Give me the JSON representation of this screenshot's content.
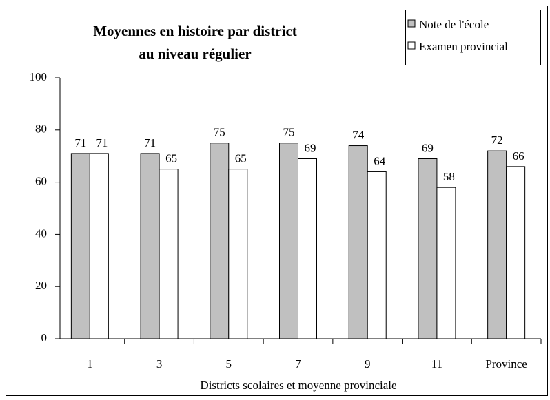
{
  "chart_data": {
    "type": "bar",
    "title": [
      "Moyennes en histoire par district",
      "au niveau régulier"
    ],
    "x_label": "Districts scolaires et moyenne provinciale",
    "categories": [
      "1",
      "3",
      "5",
      "7",
      "9",
      "11",
      "Province"
    ],
    "series": [
      {
        "name": "Note de l'école",
        "color": "#c0c0c0",
        "values": [
          71,
          71,
          75,
          75,
          74,
          69,
          72
        ]
      },
      {
        "name": "Examen provincial",
        "color": "#ffffff",
        "values": [
          71,
          65,
          65,
          69,
          64,
          58,
          66
        ]
      }
    ],
    "ylim": [
      0,
      100
    ],
    "yticks": [
      0,
      20,
      40,
      60,
      80,
      100
    ]
  }
}
